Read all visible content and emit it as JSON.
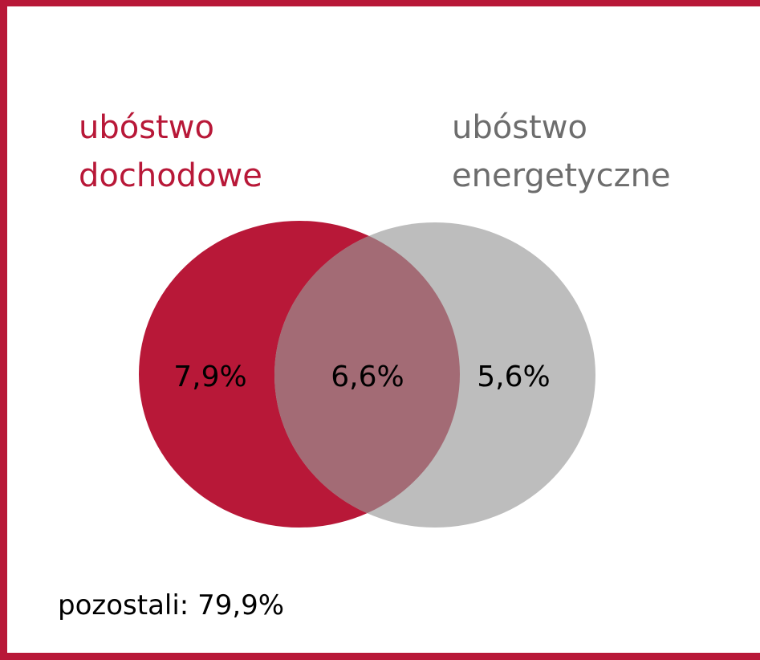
{
  "sets": [
    {
      "label_lines": [
        "ubóstwo",
        "dochodowe"
      ],
      "only_label": "7,9%"
    },
    {
      "label_lines": [
        "ubóstwo",
        "energetyczne"
      ],
      "only_label": "5,6%"
    }
  ],
  "overlap_label": "6,6%",
  "footer": "pozostali: 79,9%"
}
